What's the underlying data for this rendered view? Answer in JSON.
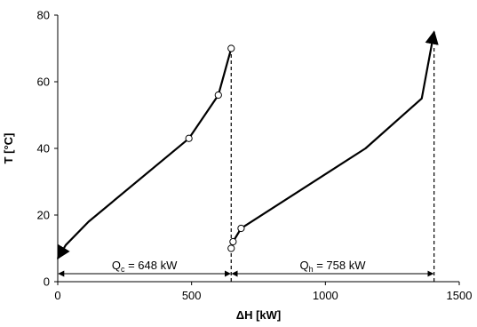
{
  "chart_data": {
    "type": "line",
    "xlabel": "ΔH [kW]",
    "ylabel": "T [°C]",
    "xlim": [
      0,
      1500
    ],
    "ylim": [
      0,
      80
    ],
    "x_ticks": [
      0,
      500,
      1000,
      1500
    ],
    "y_ticks": [
      0,
      20,
      40,
      60,
      80
    ],
    "grid": false,
    "series": [
      {
        "x": [
          0,
          30,
          115,
          490,
          600,
          648
        ],
        "y": [
          7,
          11,
          18,
          43,
          56,
          70
        ],
        "markers": [
          {
            "x": 490,
            "y": 43
          },
          {
            "x": 600,
            "y": 56
          },
          {
            "x": 648,
            "y": 70
          }
        ],
        "arrow_end": "start"
      },
      {
        "x": [
          648,
          655,
          685,
          1150,
          1360,
          1406
        ],
        "y": [
          10,
          12,
          16,
          40,
          55,
          75
        ],
        "markers": [
          {
            "x": 648,
            "y": 10
          },
          {
            "x": 655,
            "y": 12
          },
          {
            "x": 685,
            "y": 16
          }
        ],
        "arrow_end": "end"
      }
    ],
    "annotations": [
      {
        "main": "Q",
        "sub": "c",
        "rest": " = 648 kW",
        "from_x": 0,
        "to_x": 648,
        "y": 4
      },
      {
        "main": "Q",
        "sub": "h",
        "rest": " = 758 kW",
        "from_x": 648,
        "to_x": 1406,
        "y": 4
      }
    ],
    "vlines_x": [
      648,
      1406
    ]
  }
}
